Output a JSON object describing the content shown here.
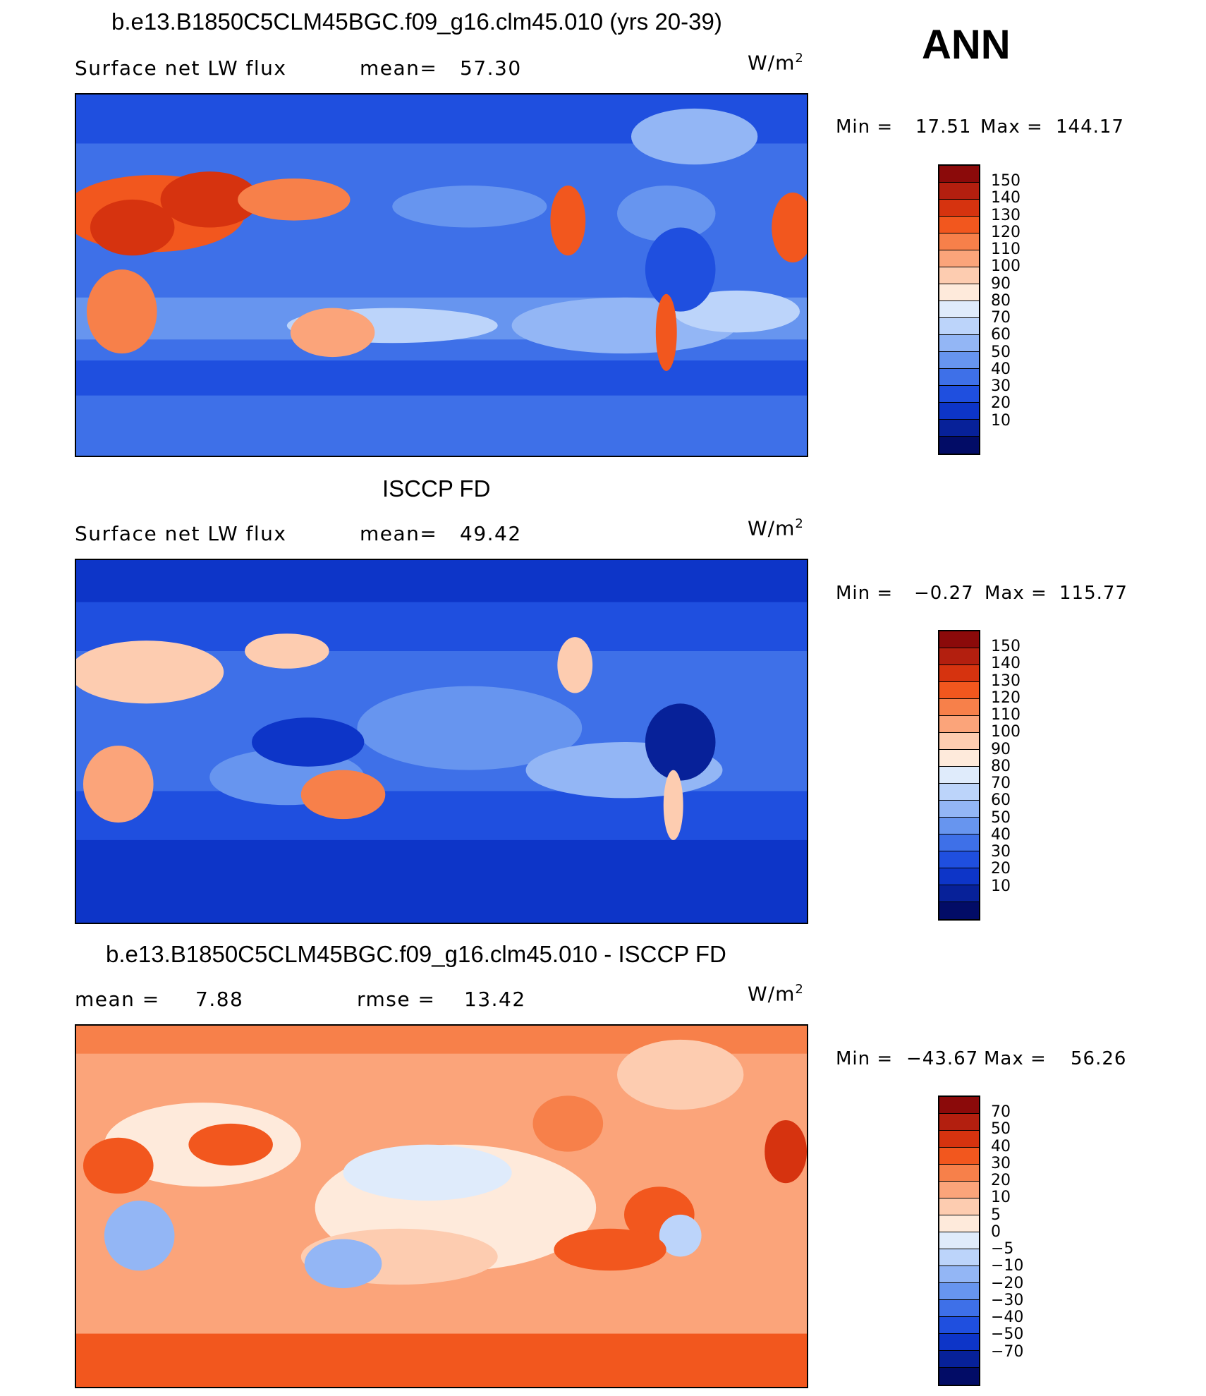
{
  "header": {
    "case_title": "b.e13.B1850C5CLM45BGC.f09_g16.clm45.010 (yrs 20-39)",
    "season": "ANN"
  },
  "panels": [
    {
      "field_label": "Surface net LW flux",
      "stat1_label": "mean=",
      "stat1_value": "57.30",
      "units_base": "W/m",
      "units_exp": "2",
      "min_label": "Min =",
      "min_value": "17.51",
      "max_label": "Max =",
      "max_value": "144.17",
      "colorbar_ticks": [
        "150",
        "140",
        "130",
        "120",
        "110",
        "100",
        "90",
        "80",
        "70",
        "60",
        "50",
        "40",
        "30",
        "20",
        "10"
      ]
    },
    {
      "panel_title": "ISCCP FD",
      "field_label": "Surface net LW flux",
      "stat1_label": "mean=",
      "stat1_value": "49.42",
      "units_base": "W/m",
      "units_exp": "2",
      "min_label": "Min =",
      "min_value": "−0.27",
      "max_label": "Max =",
      "max_value": "115.77",
      "colorbar_ticks": [
        "150",
        "140",
        "130",
        "120",
        "110",
        "100",
        "90",
        "80",
        "70",
        "60",
        "50",
        "40",
        "30",
        "20",
        "10"
      ]
    },
    {
      "panel_title": "b.e13.B1850C5CLM45BGC.f09_g16.clm45.010 - ISCCP FD",
      "stat1_label": "mean =",
      "stat1_value": "7.88",
      "stat2_label": "rmse =",
      "stat2_value": "13.42",
      "units_base": "W/m",
      "units_exp": "2",
      "min_label": "Min =",
      "min_value": "−43.67",
      "max_label": "Max =",
      "max_value": "56.26",
      "colorbar_ticks": [
        "70",
        "50",
        "40",
        "30",
        "20",
        "10",
        "5",
        "0",
        "−5",
        "−10",
        "−20",
        "−30",
        "−40",
        "−50",
        "−70"
      ]
    }
  ],
  "colors": {
    "abs_scale": [
      "#8b0a0a",
      "#b31f0f",
      "#d6330f",
      "#f2571e",
      "#f7804a",
      "#fba47a",
      "#fdccb0",
      "#feeadb",
      "#dfebfb",
      "#bcd4fa",
      "#93b6f5",
      "#6795ef",
      "#3e70e8",
      "#1f4fdf",
      "#0d35c8",
      "#072199",
      "#020c66"
    ],
    "diff_scale": [
      "#8b0a0a",
      "#b31f0f",
      "#d6330f",
      "#f2571e",
      "#f7804a",
      "#fba47a",
      "#fdccb0",
      "#feeadb",
      "#dfebfb",
      "#bcd4fa",
      "#93b6f5",
      "#6795ef",
      "#3e70e8",
      "#1f4fdf",
      "#0d35c8",
      "#072199",
      "#020c66"
    ]
  }
}
